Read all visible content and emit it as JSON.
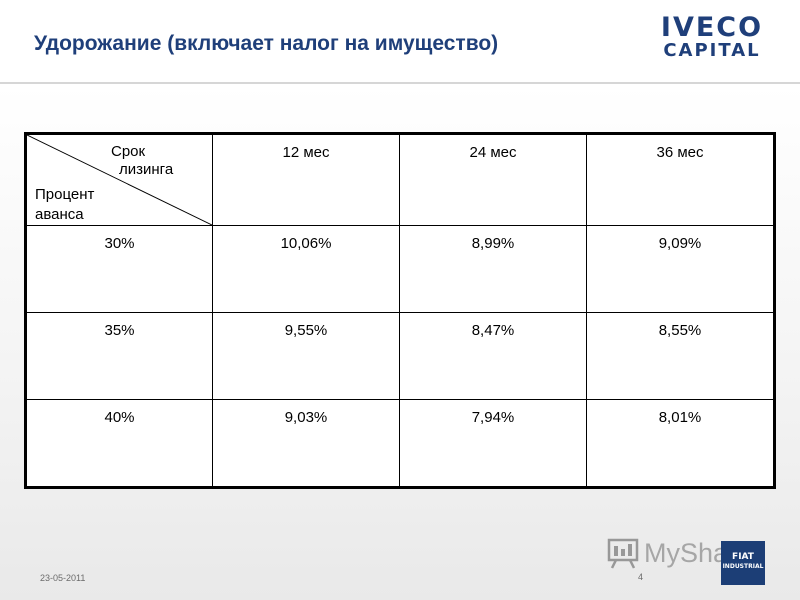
{
  "slide": {
    "title": "Удорожание (включает налог на имущество)",
    "logo": {
      "line1": "IVECO",
      "line2": "CAPITAL"
    },
    "footer": {
      "date": "23-05-2011",
      "page_number": "4",
      "watermark_text": "MySha",
      "badge_line1": "FIAT",
      "badge_line2": "INDUSTRIAL"
    }
  },
  "table": {
    "corner_top_line1": "Срок",
    "corner_top_line2": "лизинга",
    "corner_bottom_line1": "Процент",
    "corner_bottom_line2": "аванса",
    "columns": [
      "12 мес",
      "24 мес",
      "36 мес"
    ],
    "rows": [
      {
        "advance": "30%",
        "values": [
          "10,06%",
          "8,99%",
          "9,09%"
        ]
      },
      {
        "advance": "35%",
        "values": [
          "9,55%",
          "8,47%",
          "8,55%"
        ]
      },
      {
        "advance": "40%",
        "values": [
          "9,03%",
          "7,94%",
          "8,01%"
        ]
      }
    ]
  },
  "colors": {
    "title": "#1f3f7a",
    "logo": "#1f3f7a",
    "badge": "#1c3e76"
  }
}
